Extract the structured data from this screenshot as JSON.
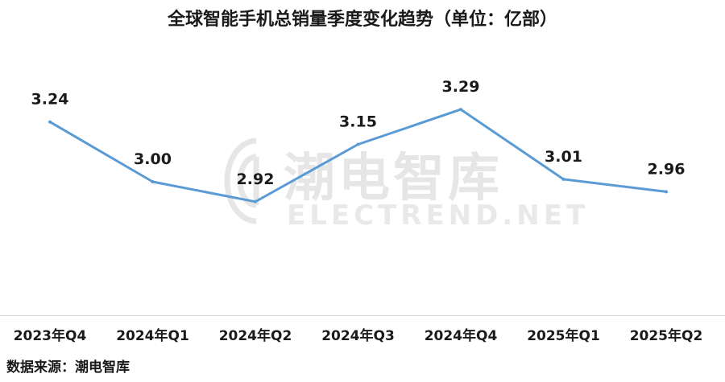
{
  "chart_data": {
    "type": "line",
    "title": "全球智能手机总销量季度变化趋势（单位：亿部）",
    "categories": [
      "2023年Q4",
      "2024年Q1",
      "2024年Q2",
      "2024年Q3",
      "2024年Q4",
      "2025年Q1",
      "2025年Q2"
    ],
    "series": [
      {
        "values": [
          3.24,
          3.0,
          2.92,
          3.15,
          3.29,
          3.01,
          2.96
        ]
      }
    ],
    "value_labels": [
      "3.24",
      "3.00",
      "2.92",
      "3.15",
      "3.29",
      "3.01",
      "2.96"
    ],
    "ylim": [
      2.6,
      3.6
    ],
    "grid": false,
    "line_color": "#5b9bd5"
  },
  "source": "数据来源：潮电智库",
  "watermark": {
    "text": "潮电智库",
    "subtext": "ELECTREND.NET"
  }
}
